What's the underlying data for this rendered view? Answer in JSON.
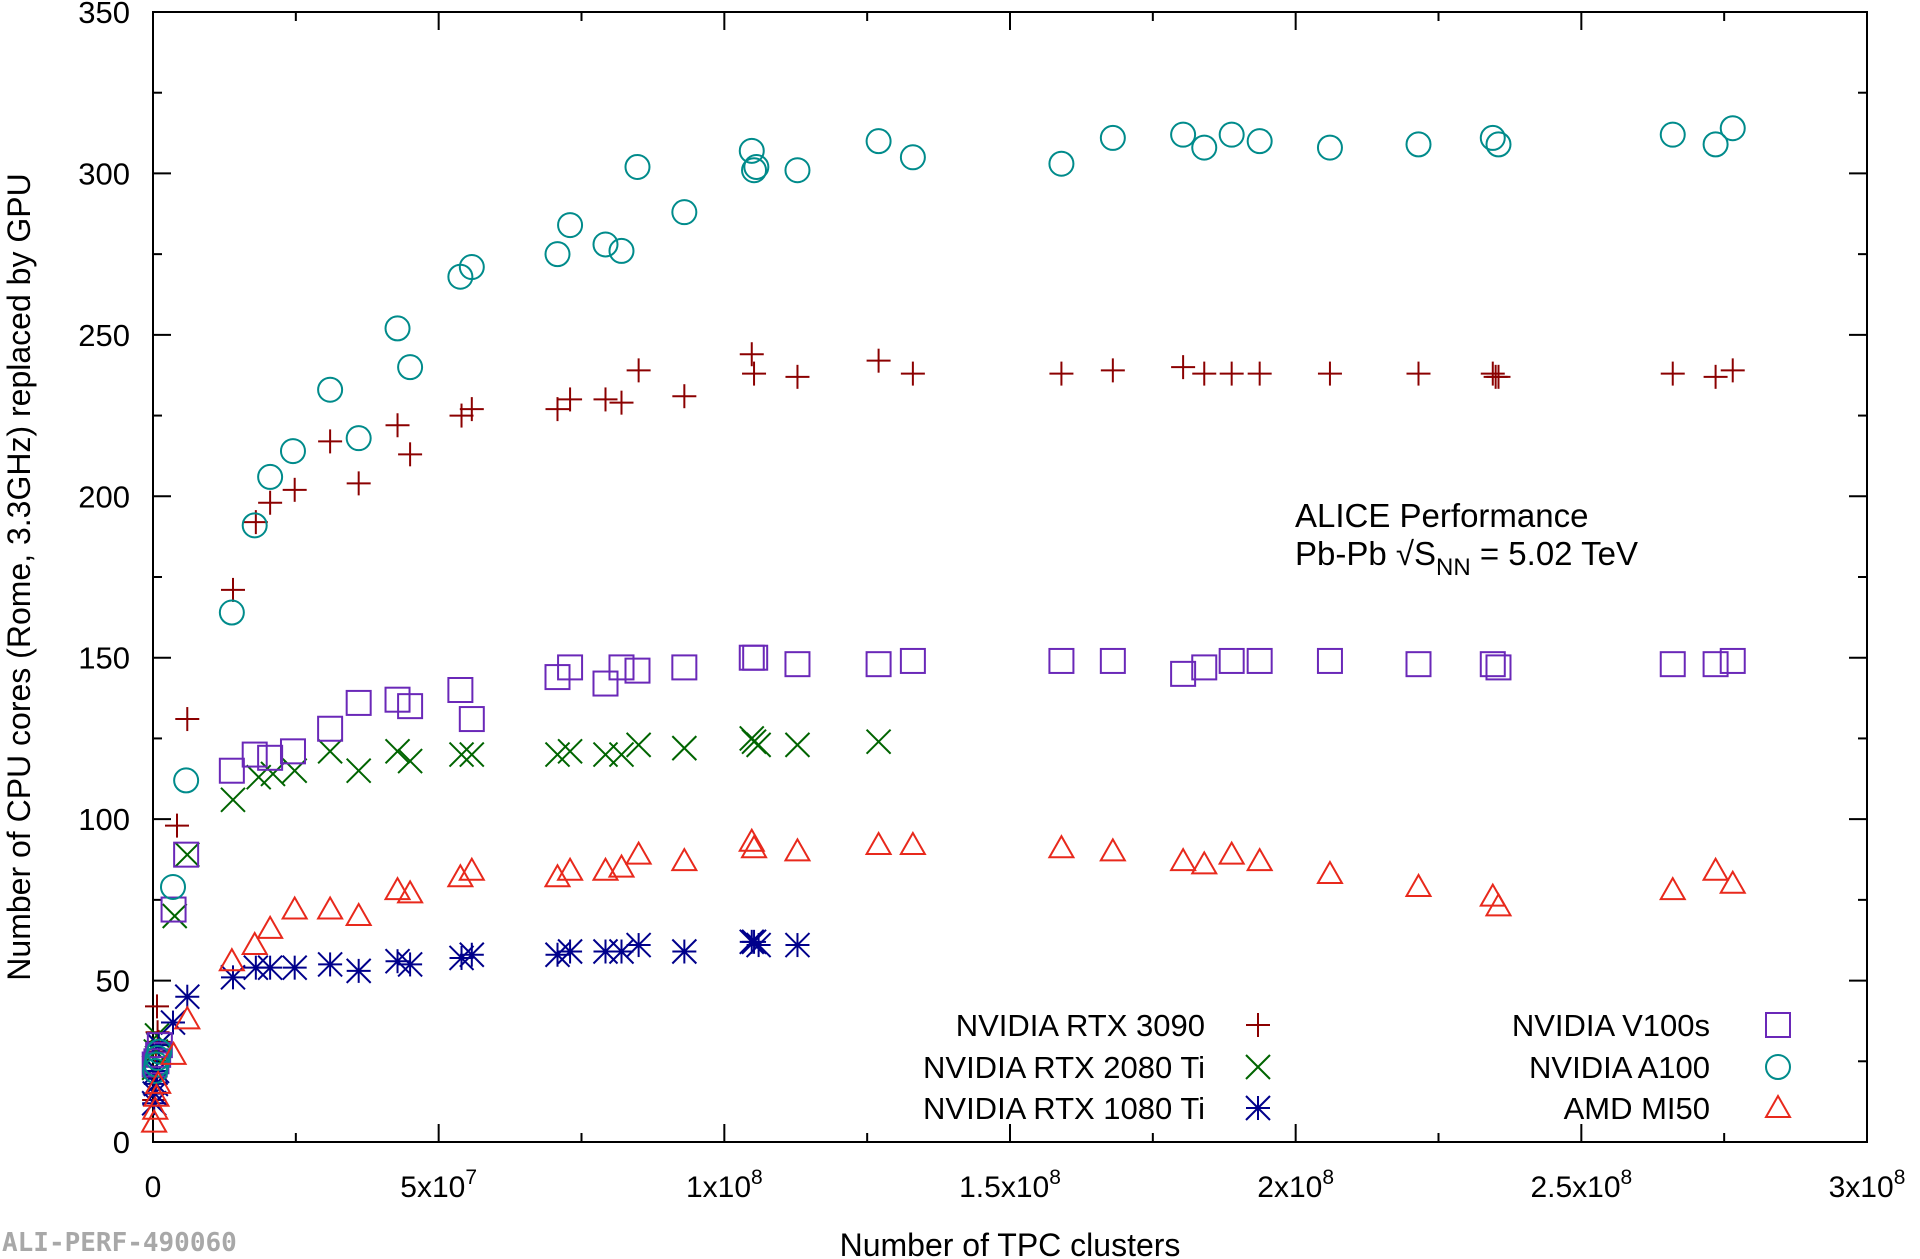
{
  "chart_data": {
    "type": "scatter",
    "title": "",
    "xlabel": "Number of TPC clusters",
    "ylabel": "Number of CPU cores (Rome, 3.3GHz) replaced by GPU",
    "xlim": [
      0,
      300000000
    ],
    "ylim": [
      0,
      350
    ],
    "grid": false,
    "x_tick_labels": [
      {
        "value": 0,
        "base": "0",
        "exp": ""
      },
      {
        "value": 50000000,
        "base": "5x10",
        "exp": "7"
      },
      {
        "value": 100000000,
        "base": "1x10",
        "exp": "8"
      },
      {
        "value": 150000000,
        "base": "1.5x10",
        "exp": "8"
      },
      {
        "value": 200000000,
        "base": "2x10",
        "exp": "8"
      },
      {
        "value": 250000000,
        "base": "2.5x10",
        "exp": "8"
      },
      {
        "value": 300000000,
        "base": "3x10",
        "exp": "8"
      }
    ],
    "y_tick_labels": [
      "0",
      "50",
      "100",
      "150",
      "200",
      "250",
      "300",
      "350"
    ],
    "annotation": {
      "line1": "ALICE Performance",
      "line2_prefix": "Pb-Pb √S",
      "line2_sub": "NN",
      "line2_suffix": " = 5.02 TeV"
    },
    "footer_id": "ALI-PERF-490060",
    "legend_position": "bottom-right",
    "series": [
      {
        "name": "NVIDIA RTX 3090",
        "marker": "plus",
        "color": "#8b0000",
        "x": [
          200000,
          300000,
          500000,
          700000,
          800000,
          1000000,
          4200000,
          6000000,
          14000000,
          18000000,
          20500000,
          24800000,
          31000000,
          36000000,
          42800000,
          45000000,
          54000000,
          55800000,
          70800000,
          73000000,
          79200000,
          82000000,
          85000000,
          93000000,
          104800000,
          105200000,
          112800000,
          127000000,
          133000000,
          159000000,
          168000000,
          180300000,
          184000000,
          188800000,
          193700000,
          206000000,
          221500000,
          234500000,
          235000000,
          235500000,
          266000000,
          273500000,
          276500000
        ],
        "y": [
          13,
          20,
          28,
          42,
          34,
          31,
          98,
          131,
          171,
          192,
          198,
          202,
          217,
          204,
          222,
          213,
          225,
          227,
          227,
          230,
          230,
          229,
          239,
          231,
          244,
          238,
          237,
          242,
          238,
          238,
          239,
          240,
          238,
          238,
          238,
          238,
          238,
          238,
          237,
          237,
          238,
          237,
          239
        ]
      },
      {
        "name": "NVIDIA RTX 2080 Ti",
        "marker": "cross",
        "color": "#006400",
        "x": [
          200000,
          500000,
          700000,
          1000000,
          3800000,
          6000000,
          14000000,
          18500000,
          21000000,
          24800000,
          31000000,
          36000000,
          42800000,
          45000000,
          54000000,
          55800000,
          70800000,
          73000000,
          79200000,
          82000000,
          85000000,
          93000000,
          104800000,
          105200000,
          106000000,
          112800000,
          127000000
        ],
        "y": [
          23,
          28,
          33,
          30,
          70,
          89,
          106,
          113,
          114,
          115,
          121,
          115,
          121,
          118,
          120,
          120,
          120,
          121,
          120,
          120,
          123,
          122,
          125,
          124,
          123,
          123,
          124
        ]
      },
      {
        "name": "NVIDIA RTX 1080 Ti",
        "marker": "star",
        "color": "#00008b",
        "x": [
          200000,
          300000,
          500000,
          700000,
          1000000,
          3500000,
          6000000,
          14000000,
          18000000,
          20500000,
          24800000,
          31000000,
          36000000,
          42800000,
          45000000,
          54000000,
          55800000,
          70800000,
          73000000,
          79200000,
          82000000,
          85000000,
          93000000,
          104800000,
          105200000,
          106000000,
          112800000
        ],
        "y": [
          12,
          15,
          18,
          22,
          30,
          37,
          45,
          51,
          54,
          54,
          54,
          55,
          53,
          56,
          55,
          57,
          58,
          58,
          59,
          59,
          59,
          61,
          59,
          62,
          62,
          61,
          61
        ]
      },
      {
        "name": "NVIDIA V100s",
        "marker": "square",
        "color": "#6a28b8",
        "x": [
          300000,
          600000,
          900000,
          1200000,
          3600000,
          5800000,
          13800000,
          17800000,
          20500000,
          24500000,
          31000000,
          36000000,
          42800000,
          45000000,
          53800000,
          55800000,
          70800000,
          73000000,
          79200000,
          82000000,
          84800000,
          93000000,
          104800000,
          105400000,
          112800000,
          127000000,
          133000000,
          159000000,
          168000000,
          180300000,
          184000000,
          188800000,
          193700000,
          206000000,
          221500000,
          234500000,
          235500000,
          266000000,
          273500000,
          276500000
        ],
        "y": [
          24,
          25,
          27,
          30,
          72,
          89,
          115,
          120,
          119,
          121,
          128,
          136,
          137,
          135,
          140,
          131,
          144,
          147,
          142,
          147,
          146,
          147,
          150,
          150,
          148,
          148,
          149,
          149,
          149,
          145,
          147,
          149,
          149,
          149,
          148,
          148,
          147,
          148,
          148,
          149
        ]
      },
      {
        "name": "NVIDIA A100",
        "marker": "circle",
        "color": "#008b8b",
        "x": [
          400000,
          600000,
          800000,
          1100000,
          3500000,
          5800000,
          13800000,
          17800000,
          20500000,
          24500000,
          31000000,
          36000000,
          42800000,
          45000000,
          53800000,
          55800000,
          70800000,
          73000000,
          79200000,
          82000000,
          84800000,
          93000000,
          104800000,
          105200000,
          105600000,
          112800000,
          127000000,
          133000000,
          159000000,
          168000000,
          180300000,
          184000000,
          188800000,
          193700000,
          206000000,
          221500000,
          234500000,
          235500000,
          266000000,
          273500000,
          276500000
        ],
        "y": [
          22,
          24,
          26,
          28,
          79,
          112,
          164,
          191,
          206,
          214,
          233,
          218,
          252,
          240,
          268,
          271,
          275,
          284,
          278,
          276,
          302,
          288,
          307,
          301,
          302,
          301,
          310,
          305,
          303,
          311,
          312,
          308,
          312,
          310,
          308,
          309,
          311,
          309,
          312,
          309,
          314
        ]
      },
      {
        "name": "AMD MI50",
        "marker": "triangle",
        "color": "#e8291c",
        "x": [
          200000,
          400000,
          600000,
          900000,
          3600000,
          6000000,
          13800000,
          17800000,
          20500000,
          24800000,
          31000000,
          36000000,
          42800000,
          45000000,
          53800000,
          55800000,
          70800000,
          73000000,
          79200000,
          82000000,
          85000000,
          93000000,
          104800000,
          105200000,
          112800000,
          127000000,
          133000000,
          159000000,
          168000000,
          180300000,
          184000000,
          188800000,
          193700000,
          206000000,
          221500000,
          234500000,
          235500000,
          266000000,
          273500000,
          276500000
        ],
        "y": [
          6,
          10,
          14,
          18,
          27,
          38,
          56,
          61,
          66,
          72,
          72,
          70,
          78,
          77,
          82,
          84,
          82,
          84,
          84,
          85,
          89,
          87,
          93,
          91,
          90,
          92,
          92,
          91,
          90,
          87,
          86,
          89,
          87,
          83,
          79,
          76,
          73,
          78,
          84,
          80
        ]
      }
    ]
  }
}
